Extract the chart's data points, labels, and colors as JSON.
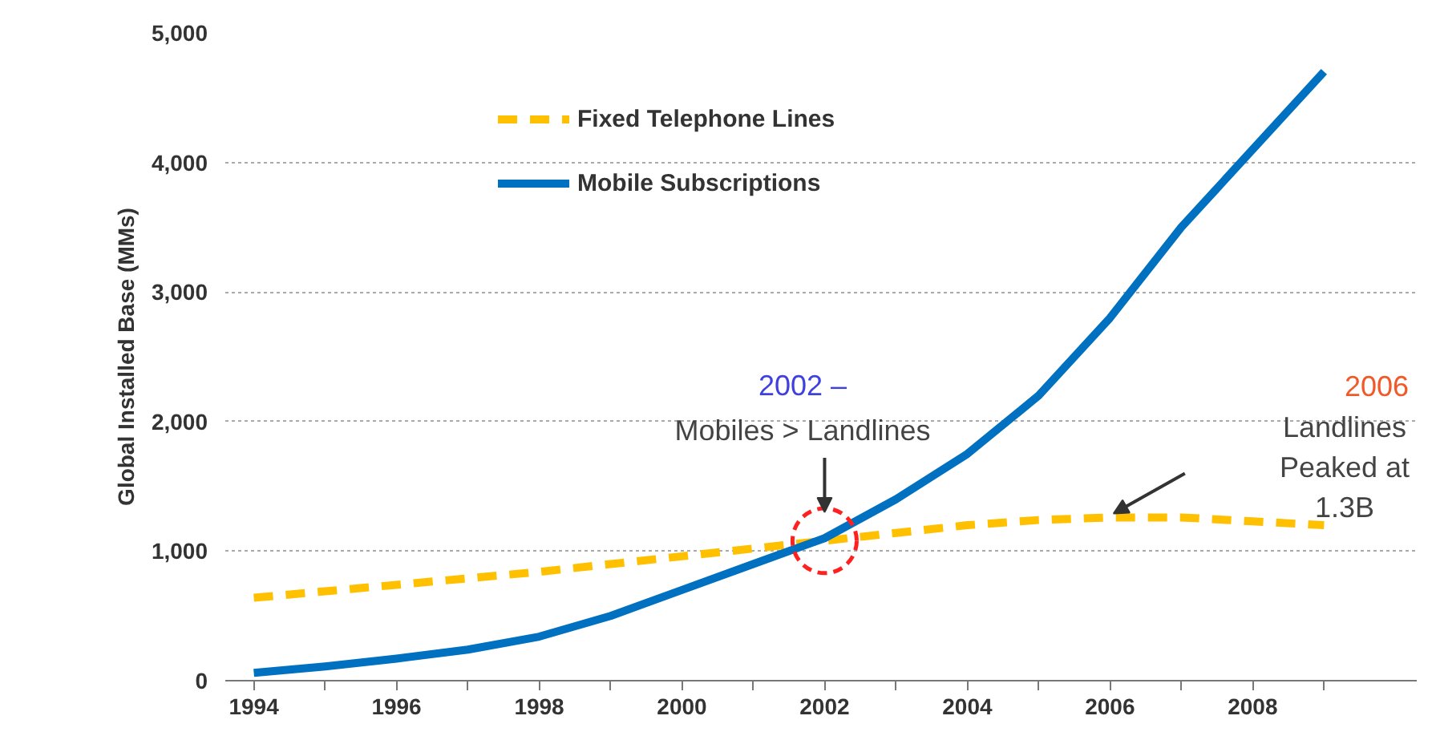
{
  "chart_data": {
    "type": "line",
    "ylabel": "Global Installed Base (MMs)",
    "x": [
      1994,
      1995,
      1996,
      1997,
      1998,
      1999,
      2000,
      2001,
      2002,
      2003,
      2004,
      2005,
      2006,
      2007,
      2008,
      2009
    ],
    "series": [
      {
        "name": "Fixed Telephone Lines",
        "color": "#ffc000",
        "line_style": "dashed",
        "values": [
          640,
          690,
          740,
          790,
          840,
          900,
          960,
          1020,
          1080,
          1140,
          1200,
          1240,
          1260,
          1260,
          1230,
          1200
        ]
      },
      {
        "name": "Mobile Subscriptions",
        "color": "#0070c0",
        "line_style": "solid",
        "values": [
          60,
          110,
          170,
          240,
          340,
          500,
          700,
          900,
          1100,
          1400,
          1750,
          2200,
          2800,
          3500,
          4100,
          4700
        ]
      }
    ],
    "xlim": [
      1993.6,
      2010.3
    ],
    "xticks": [
      1994,
      {
        "value": 1995,
        "label": null
      },
      1996,
      {
        "value": 1997,
        "label": null
      },
      1998,
      {
        "value": 1999,
        "label": null
      },
      2000,
      {
        "value": 2001,
        "label": null
      },
      2002,
      {
        "value": 2003,
        "label": null
      },
      2004,
      {
        "value": 2005,
        "label": null
      },
      2006,
      {
        "value": 2007,
        "label": null
      },
      2008,
      {
        "value": 2009,
        "label": null
      }
    ],
    "ylim": [
      0,
      5000
    ],
    "yticks": [
      {
        "value": 0,
        "label": "0"
      },
      {
        "value": 1000,
        "label": "1,000"
      },
      {
        "value": 2000,
        "label": "2,000"
      },
      {
        "value": 3000,
        "label": "3,000"
      },
      {
        "value": 4000,
        "label": "4,000"
      },
      {
        "value": 5000,
        "label": "5,000"
      }
    ],
    "grid": "y",
    "legend": "top left",
    "marker": "none",
    "annotations": [
      "2002 –",
      {
        "text": "Mobiles > Landlines",
        "x": 2002,
        "y": 1300
      },
      "2006",
      "Landlines\nPeaked at\n1.3B"
    ]
  }
}
